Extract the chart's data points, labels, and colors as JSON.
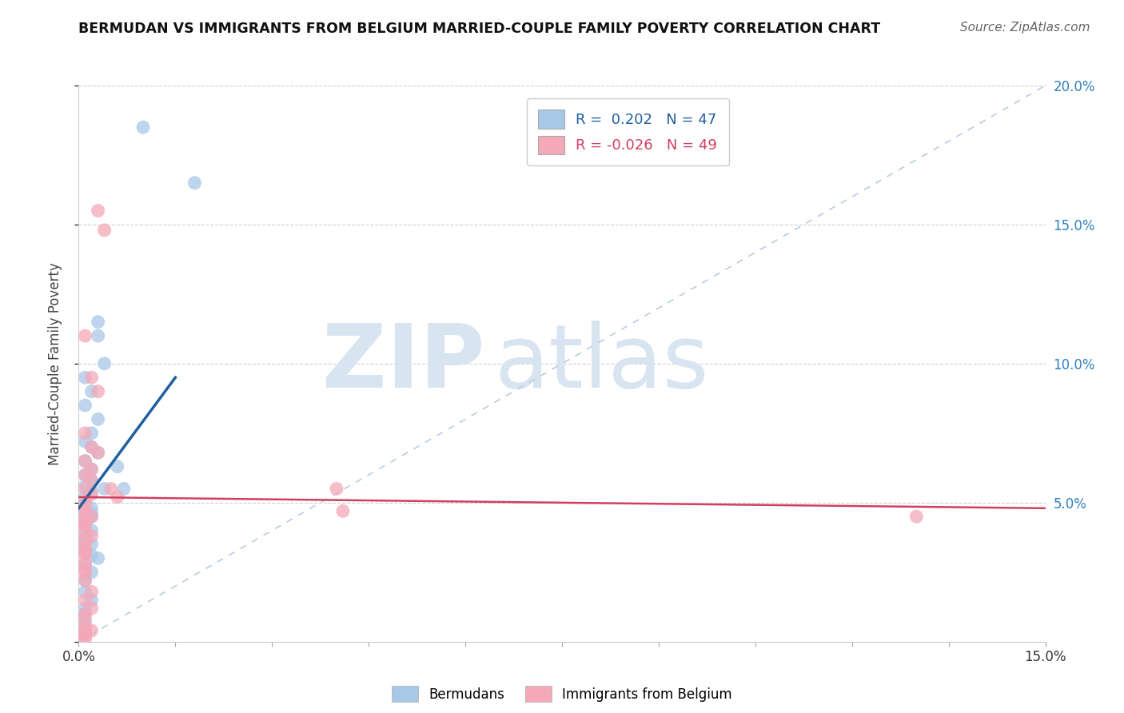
{
  "title": "BERMUDAN VS IMMIGRANTS FROM BELGIUM MARRIED-COUPLE FAMILY POVERTY CORRELATION CHART",
  "source": "Source: ZipAtlas.com",
  "ylabel": "Married-Couple Family Poverty",
  "xlim": [
    0,
    0.15
  ],
  "ylim": [
    0,
    0.2
  ],
  "legend_blue_r": " 0.202",
  "legend_blue_n": "47",
  "legend_pink_r": "-0.026",
  "legend_pink_n": "49",
  "blue_color": "#a8c8e8",
  "pink_color": "#f4a8b8",
  "blue_line_color": "#2060a0",
  "pink_line_color": "#d04060",
  "diag_line_color": "#b8cce0",
  "watermark_zip": "ZIP",
  "watermark_atlas": "atlas",
  "watermark_color": "#d8e4f0",
  "blue_scatter_x": [
    0.01,
    0.018,
    0.003,
    0.003,
    0.004,
    0.001,
    0.002,
    0.001,
    0.003,
    0.002,
    0.001,
    0.002,
    0.003,
    0.001,
    0.002,
    0.001,
    0.002,
    0.001,
    0.002,
    0.001,
    0.001,
    0.002,
    0.001,
    0.002,
    0.001,
    0.001,
    0.001,
    0.002,
    0.001,
    0.001,
    0.002,
    0.001,
    0.002,
    0.003,
    0.001,
    0.002,
    0.001,
    0.001,
    0.002,
    0.001,
    0.001,
    0.001,
    0.006,
    0.004,
    0.002,
    0.007,
    0.001
  ],
  "blue_scatter_y": [
    0.185,
    0.165,
    0.115,
    0.11,
    0.1,
    0.095,
    0.09,
    0.085,
    0.08,
    0.075,
    0.072,
    0.07,
    0.068,
    0.065,
    0.062,
    0.06,
    0.058,
    0.056,
    0.054,
    0.052,
    0.05,
    0.048,
    0.047,
    0.046,
    0.045,
    0.043,
    0.042,
    0.04,
    0.038,
    0.036,
    0.035,
    0.033,
    0.031,
    0.03,
    0.028,
    0.025,
    0.022,
    0.018,
    0.015,
    0.012,
    0.01,
    0.007,
    0.063,
    0.055,
    0.045,
    0.055,
    0.003
  ],
  "pink_scatter_x": [
    0.003,
    0.004,
    0.001,
    0.002,
    0.003,
    0.001,
    0.002,
    0.003,
    0.001,
    0.002,
    0.001,
    0.002,
    0.001,
    0.002,
    0.001,
    0.001,
    0.001,
    0.002,
    0.001,
    0.001,
    0.001,
    0.001,
    0.002,
    0.001,
    0.001,
    0.001,
    0.001,
    0.001,
    0.001,
    0.001,
    0.005,
    0.006,
    0.001,
    0.04,
    0.041,
    0.001,
    0.002,
    0.001,
    0.002,
    0.001,
    0.001,
    0.001,
    0.001,
    0.002,
    0.001,
    0.001,
    0.001,
    0.001,
    0.13
  ],
  "pink_scatter_y": [
    0.155,
    0.148,
    0.11,
    0.095,
    0.09,
    0.075,
    0.07,
    0.068,
    0.065,
    0.062,
    0.06,
    0.058,
    0.055,
    0.053,
    0.05,
    0.048,
    0.047,
    0.045,
    0.044,
    0.043,
    0.042,
    0.04,
    0.038,
    0.037,
    0.035,
    0.033,
    0.032,
    0.031,
    0.028,
    0.026,
    0.055,
    0.052,
    0.025,
    0.055,
    0.047,
    0.022,
    0.018,
    0.015,
    0.012,
    0.01,
    0.008,
    0.005,
    0.003,
    0.004,
    0.001,
    0.002,
    0.003,
    0.004,
    0.045
  ],
  "blue_line_x": [
    0.0,
    0.015
  ],
  "blue_line_y": [
    0.048,
    0.095
  ],
  "pink_line_x": [
    0.0,
    0.15
  ],
  "pink_line_y": [
    0.052,
    0.048
  ]
}
